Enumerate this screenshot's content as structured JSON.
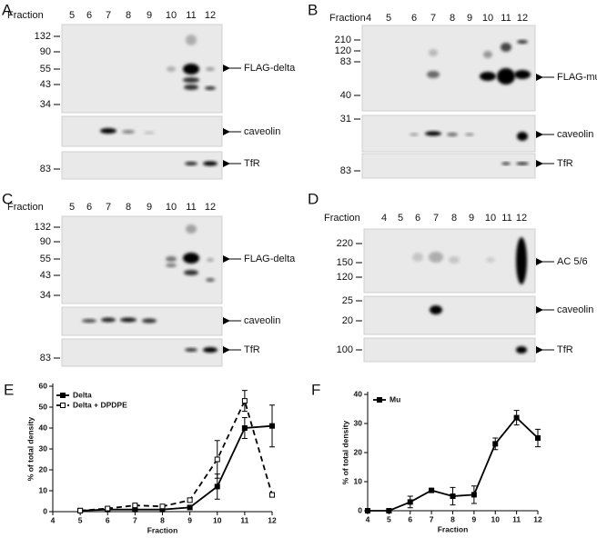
{
  "panels": [
    {
      "label": "A",
      "fraction_label": "Fraction",
      "fractions": [
        "5",
        "6",
        "7",
        "8",
        "9",
        "10",
        "11",
        "12"
      ],
      "blots": [
        {
          "markers": [
            "132",
            "90",
            "55",
            "43",
            "34"
          ],
          "band_label": "FLAG-delta"
        },
        {
          "band_label": "caveolin"
        },
        {
          "markers": [
            "83"
          ],
          "band_label": "TfR"
        }
      ]
    },
    {
      "label": "B",
      "fraction_label": "Fraction",
      "fractions": [
        "4",
        "5",
        "6",
        "7",
        "8",
        "9",
        "10",
        "11",
        "12"
      ],
      "blots": [
        {
          "markers": [
            "210",
            "120",
            "83",
            "40"
          ],
          "band_label": "FLAG-mu"
        },
        {
          "markers": [
            "31"
          ],
          "band_label": "caveolin"
        },
        {
          "markers": [
            "83"
          ],
          "band_label": "TfR"
        }
      ]
    },
    {
      "label": "C",
      "fraction_label": "Fraction",
      "fractions": [
        "5",
        "6",
        "7",
        "8",
        "9",
        "10",
        "11",
        "12"
      ],
      "blots": [
        {
          "markers": [
            "132",
            "90",
            "55",
            "43",
            "34"
          ],
          "band_label": "FLAG-delta"
        },
        {
          "band_label": "caveolin"
        },
        {
          "markers": [
            "83"
          ],
          "band_label": "TfR"
        }
      ]
    },
    {
      "label": "D",
      "fraction_label": "Fraction",
      "fractions": [
        "4",
        "5",
        "6",
        "7",
        "8",
        "9",
        "10",
        "11",
        "12"
      ],
      "blots": [
        {
          "markers": [
            "220",
            "150",
            "120"
          ],
          "band_label": "AC 5/6"
        },
        {
          "markers": [
            "25",
            "20"
          ],
          "band_label": "caveolin"
        },
        {
          "markers": [
            "100"
          ],
          "band_label": "TfR"
        }
      ]
    }
  ],
  "chart_data": [
    {
      "type": "line",
      "panel_label": "E",
      "x_label": "Fraction",
      "y_label": "% of total density",
      "x": [
        5,
        6,
        7,
        8,
        9,
        10,
        11,
        12
      ],
      "series": [
        {
          "name": "Delta",
          "color": "#000000",
          "dashed": false,
          "marker": "filled-square",
          "values": [
            0.5,
            1,
            1,
            1,
            2,
            12,
            40,
            41
          ],
          "errors": [
            0.3,
            0.5,
            0.5,
            0.5,
            1,
            6,
            5,
            10
          ]
        },
        {
          "name": "Delta + DPDPE",
          "color": "#000000",
          "dashed": true,
          "marker": "open-square",
          "values": [
            0.5,
            1.5,
            3,
            2.5,
            5.5,
            25,
            53,
            8
          ],
          "errors": [
            0.3,
            0.5,
            0.5,
            0.5,
            1,
            9,
            5,
            1
          ]
        }
      ],
      "xlim": [
        4,
        12
      ],
      "xticks": [
        4,
        5,
        6,
        7,
        8,
        9,
        10,
        11,
        12
      ],
      "ylim": [
        0,
        60
      ],
      "yticks": [
        0,
        10,
        20,
        30,
        40,
        50,
        60
      ]
    },
    {
      "type": "line",
      "panel_label": "F",
      "x_label": "Fraction",
      "y_label": "% of total density",
      "x": [
        4,
        5,
        6,
        7,
        8,
        9,
        10,
        11,
        12
      ],
      "series": [
        {
          "name": "Mu",
          "color": "#000000",
          "dashed": false,
          "marker": "filled-square",
          "values": [
            0,
            0,
            3,
            7,
            5,
            5.5,
            23,
            32,
            25
          ],
          "errors": [
            0.5,
            0.5,
            2,
            0.5,
            3,
            3,
            2,
            2.5,
            3
          ]
        }
      ],
      "xlim": [
        4,
        12
      ],
      "xticks": [
        4,
        5,
        6,
        7,
        8,
        9,
        10,
        11,
        12
      ],
      "ylim": [
        0,
        40
      ],
      "yticks": [
        0,
        10,
        20,
        30,
        40
      ]
    }
  ]
}
